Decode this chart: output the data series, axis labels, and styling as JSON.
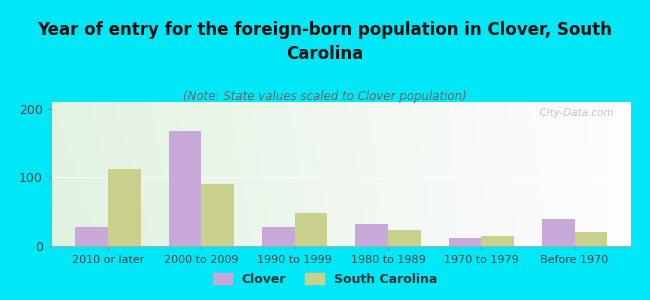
{
  "categories": [
    "2010 or later",
    "2000 to 2009",
    "1990 to 1999",
    "1980 to 1989",
    "1970 to 1979",
    "Before 1970"
  ],
  "clover_values": [
    27,
    168,
    27,
    32,
    12,
    40
  ],
  "sc_values": [
    113,
    90,
    48,
    23,
    15,
    20
  ],
  "clover_color": "#c8a8d8",
  "sc_color": "#c8d08c",
  "title": "Year of entry for the foreign-born population in Clover, South\nCarolina",
  "subtitle": "(Note: State values scaled to Clover population)",
  "legend_clover": "Clover",
  "legend_sc": "South Carolina",
  "ylim": [
    0,
    210
  ],
  "yticks": [
    0,
    100,
    200
  ],
  "background_color": "#00e8f8",
  "watermark": "  City-Data.com",
  "bar_width": 0.35,
  "title_fontsize": 12,
  "subtitle_fontsize": 8.5,
  "tick_fontsize": 8,
  "legend_fontsize": 9
}
